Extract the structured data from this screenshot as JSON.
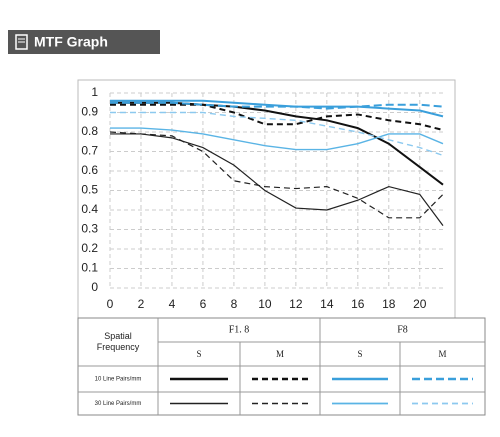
{
  "header": {
    "title": "MTF Graph"
  },
  "chart_data": {
    "type": "line",
    "x": [
      0,
      2,
      4,
      6,
      8,
      10,
      12,
      14,
      16,
      18,
      20,
      21.5
    ],
    "series": [
      {
        "color": "#111111",
        "width": 2,
        "dash": "none",
        "values": [
          0.95,
          0.95,
          0.95,
          0.94,
          0.93,
          0.91,
          0.88,
          0.86,
          0.82,
          0.74,
          0.62,
          0.53
        ]
      },
      {
        "color": "#111111",
        "width": 2,
        "dash": "6 4",
        "values": [
          0.94,
          0.94,
          0.94,
          0.94,
          0.9,
          0.84,
          0.84,
          0.88,
          0.89,
          0.86,
          0.84,
          0.81
        ]
      },
      {
        "color": "#3a9fdb",
        "width": 2,
        "dash": "none",
        "values": [
          0.96,
          0.96,
          0.96,
          0.96,
          0.95,
          0.94,
          0.93,
          0.93,
          0.93,
          0.92,
          0.91,
          0.88
        ]
      },
      {
        "color": "#3a9fdb",
        "width": 2,
        "dash": "8 4",
        "values": [
          0.95,
          0.95,
          0.95,
          0.94,
          0.93,
          0.93,
          0.93,
          0.92,
          0.93,
          0.94,
          0.94,
          0.93
        ]
      },
      {
        "color": "#222222",
        "width": 1.2,
        "dash": "none",
        "values": [
          0.79,
          0.79,
          0.77,
          0.72,
          0.63,
          0.5,
          0.41,
          0.4,
          0.45,
          0.52,
          0.48,
          0.32
        ]
      },
      {
        "color": "#222222",
        "width": 1.2,
        "dash": "6 4",
        "values": [
          0.8,
          0.79,
          0.78,
          0.7,
          0.55,
          0.52,
          0.51,
          0.52,
          0.46,
          0.36,
          0.36,
          0.48
        ]
      },
      {
        "color": "#5ab4e5",
        "width": 1.4,
        "dash": "none",
        "values": [
          0.82,
          0.82,
          0.81,
          0.79,
          0.76,
          0.73,
          0.71,
          0.71,
          0.74,
          0.79,
          0.79,
          0.74
        ]
      },
      {
        "color": "#8cc9ef",
        "width": 1.4,
        "dash": "6 4",
        "values": [
          0.9,
          0.9,
          0.9,
          0.9,
          0.88,
          0.87,
          0.86,
          0.83,
          0.8,
          0.76,
          0.72,
          0.68
        ]
      }
    ],
    "xlim": [
      0,
      21.5
    ],
    "ylim": [
      0,
      1
    ],
    "xticks": [
      0,
      2,
      4,
      6,
      8,
      10,
      12,
      14,
      16,
      18,
      20
    ],
    "yticks": [
      0,
      0.1,
      0.2,
      0.3,
      0.4,
      0.5,
      0.6,
      0.7,
      0.8,
      0.9,
      1
    ],
    "grid": true
  },
  "legend_table": {
    "corner": "Spatial Frequency",
    "groups": [
      "F1. 8",
      "F8"
    ],
    "columns": [
      "S",
      "M",
      "S",
      "M"
    ],
    "rows": [
      "10 Line Pairs/mm",
      "30 Line Pairs/mm"
    ]
  }
}
